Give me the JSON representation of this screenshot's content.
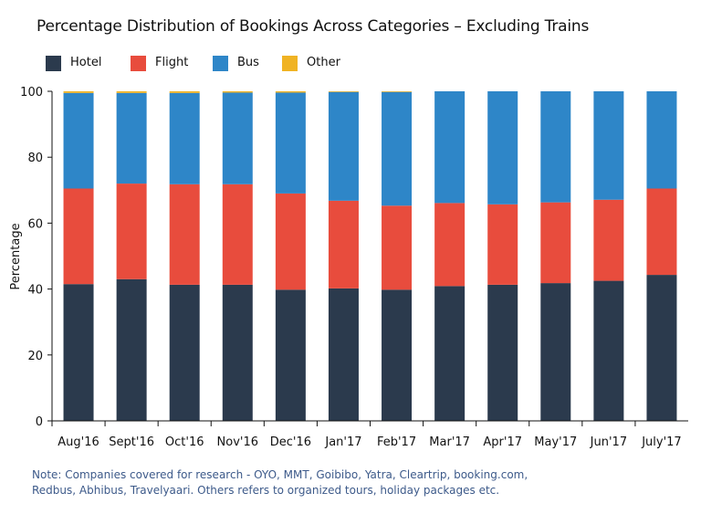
{
  "chart_data": {
    "type": "bar",
    "stacked": true,
    "title": "Percentage Distribution of Bookings Across Categories – Excluding Trains",
    "xlabel": "",
    "ylabel": "Percentage",
    "ylim": [
      0,
      100
    ],
    "yticks": [
      0,
      20,
      40,
      60,
      80,
      100
    ],
    "grid": false,
    "legend_position": "top-left",
    "categories": [
      "Aug'16",
      "Sept'16",
      "Oct'16",
      "Nov'16",
      "Dec'16",
      "Jan'17",
      "Feb'17",
      "Mar'17",
      "Apr'17",
      "May'17",
      "Jun'17",
      "July'17"
    ],
    "series": [
      {
        "name": "Hotel",
        "color": "#2b3a4d",
        "values": [
          41.5,
          43.0,
          41.3,
          41.3,
          39.8,
          40.2,
          39.8,
          40.9,
          41.3,
          41.8,
          42.5,
          44.3
        ]
      },
      {
        "name": "Flight",
        "color": "#e84c3d",
        "values": [
          29.0,
          29.0,
          30.5,
          30.5,
          29.2,
          26.6,
          25.5,
          25.2,
          24.4,
          24.5,
          24.6,
          26.2
        ]
      },
      {
        "name": "Bus",
        "color": "#2e86c8",
        "values": [
          29.0,
          27.5,
          27.7,
          27.8,
          30.6,
          33.0,
          34.5,
          33.9,
          34.3,
          33.7,
          32.9,
          29.5
        ]
      },
      {
        "name": "Other",
        "color": "#f0b323",
        "values": [
          0.5,
          0.5,
          0.5,
          0.4,
          0.4,
          0.2,
          0.2,
          0.0,
          0.0,
          0.0,
          0.0,
          0.0
        ]
      }
    ]
  },
  "note": {
    "line1": "Note: Companies covered for research - OYO, MMT, Goibibo, Yatra, Cleartrip, booking.com,",
    "line2": "Redbus, Abhibus, Travelyaari. Others refers to organized tours, holiday packages etc."
  }
}
